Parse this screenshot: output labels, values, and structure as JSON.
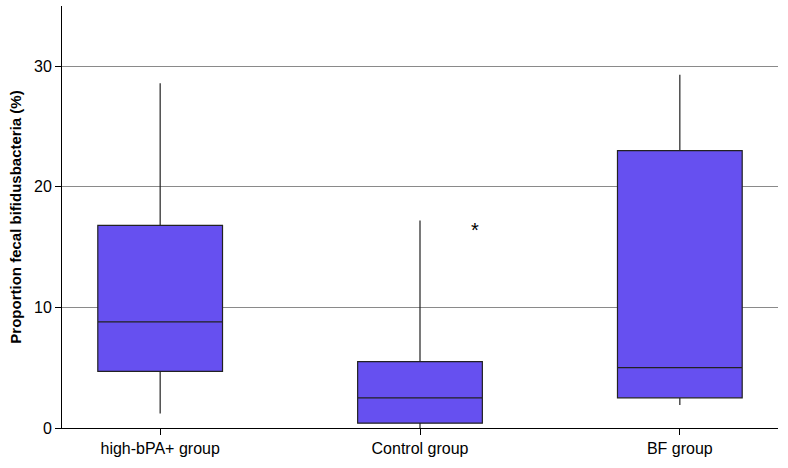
{
  "chart_data": {
    "type": "box",
    "y_label": "Proportion fecal bifidusbacteria (%)",
    "categories": [
      "high-bPA+ group",
      "Control group",
      "BF group"
    ],
    "min": [
      1.2,
      0,
      1.9
    ],
    "q1": [
      4.7,
      0.4,
      2.5
    ],
    "median": [
      8.8,
      2.5,
      5.0
    ],
    "q3": [
      16.8,
      5.5,
      23.0
    ],
    "max": [
      28.6,
      17.2,
      29.3
    ],
    "color": "#6650f0",
    "ylim": [
      0,
      35
    ],
    "yticks": [
      0,
      10,
      20,
      30
    ],
    "grid": true,
    "annotations": [
      {
        "category": "Control group",
        "y": 16.4,
        "text": "*"
      }
    ]
  }
}
